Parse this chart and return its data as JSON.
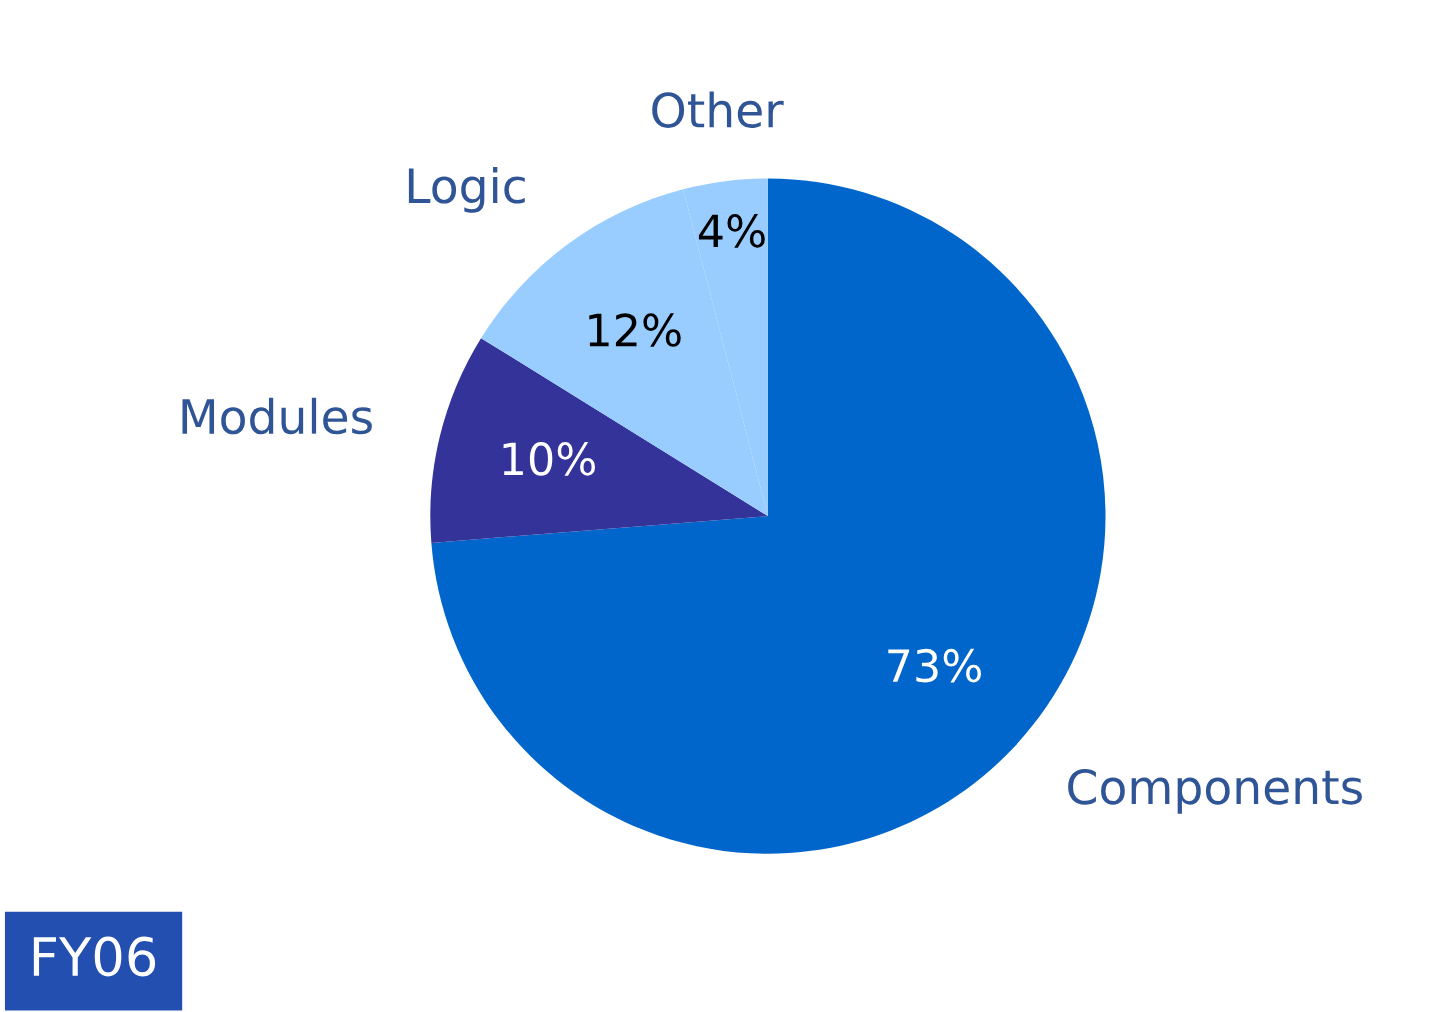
{
  "chart_data": {
    "type": "pie",
    "categories": [
      "Components",
      "Modules",
      "Logic",
      "Other"
    ],
    "values": [
      73,
      10,
      12,
      4
    ],
    "colors": [
      "#0066cc",
      "#333399",
      "#99ccff",
      "#99ccff"
    ],
    "value_labels": [
      "73%",
      "10%",
      "12%",
      "4%"
    ],
    "annotations": [
      "FY06"
    ]
  }
}
